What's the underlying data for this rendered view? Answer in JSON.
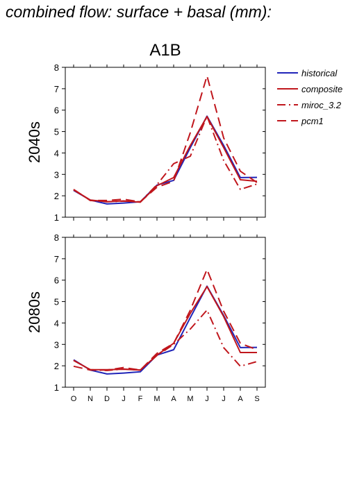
{
  "figure_title": "combined flow: surface + basal (mm):",
  "scenario_title": "A1B",
  "legend": [
    {
      "label": "historical",
      "color": "#1f24b8",
      "dash": "solid"
    },
    {
      "label": "composite",
      "color": "#c0161c",
      "dash": "solid"
    },
    {
      "label": "miroc_3.2",
      "color": "#c0161c",
      "dash": "dashdot"
    },
    {
      "label": "pcm1",
      "color": "#c0161c",
      "dash": "dashed"
    }
  ],
  "chart_data": [
    {
      "type": "line",
      "ylabel": "2040s",
      "categories": [
        "O",
        "N",
        "D",
        "J",
        "F",
        "M",
        "A",
        "M",
        "J",
        "J",
        "A",
        "S"
      ],
      "ylim": [
        1,
        8
      ],
      "yticks": [
        1,
        2,
        3,
        4,
        5,
        6,
        7,
        8
      ],
      "series": [
        {
          "name": "historical",
          "color": "#1f24b8",
          "dash": "solid",
          "values": [
            2.25,
            1.8,
            1.62,
            1.66,
            1.72,
            2.5,
            2.72,
            4.25,
            5.72,
            4.35,
            2.85,
            2.86
          ]
        },
        {
          "name": "composite",
          "color": "#c0161c",
          "dash": "solid",
          "values": [
            2.28,
            1.8,
            1.72,
            1.76,
            1.7,
            2.47,
            2.85,
            4.35,
            5.7,
            4.25,
            2.75,
            2.68
          ]
        },
        {
          "name": "miroc_3.2",
          "color": "#c0161c",
          "dash": "dashdot",
          "values": [
            2.28,
            1.78,
            1.72,
            1.75,
            1.72,
            2.52,
            3.5,
            3.85,
            5.72,
            3.65,
            2.3,
            2.55
          ]
        },
        {
          "name": "pcm1",
          "color": "#c0161c",
          "dash": "dashed",
          "values": [
            2.3,
            1.78,
            1.78,
            1.84,
            1.72,
            2.4,
            2.68,
            4.95,
            7.6,
            4.7,
            3.15,
            2.62
          ]
        }
      ]
    },
    {
      "type": "line",
      "ylabel": "2080s",
      "categories": [
        "O",
        "N",
        "D",
        "J",
        "F",
        "M",
        "A",
        "M",
        "J",
        "J",
        "A",
        "S"
      ],
      "ylim": [
        1,
        8
      ],
      "yticks": [
        1,
        2,
        3,
        4,
        5,
        6,
        7,
        8
      ],
      "series": [
        {
          "name": "historical",
          "color": "#1f24b8",
          "dash": "solid",
          "values": [
            2.28,
            1.8,
            1.62,
            1.66,
            1.72,
            2.5,
            2.75,
            4.25,
            5.72,
            4.35,
            2.85,
            2.86
          ]
        },
        {
          "name": "composite",
          "color": "#c0161c",
          "dash": "solid",
          "values": [
            2.25,
            1.82,
            1.82,
            1.84,
            1.8,
            2.5,
            3.05,
            4.45,
            5.7,
            4.3,
            2.62,
            2.62
          ]
        },
        {
          "name": "miroc_3.2",
          "color": "#c0161c",
          "dash": "dashdot",
          "values": [
            2.25,
            1.82,
            1.78,
            1.85,
            1.8,
            2.48,
            3.0,
            3.72,
            4.6,
            2.85,
            1.98,
            2.2
          ]
        },
        {
          "name": "pcm1",
          "color": "#c0161c",
          "dash": "dashed",
          "values": [
            1.98,
            1.8,
            1.8,
            1.92,
            1.8,
            2.58,
            3.05,
            4.6,
            6.5,
            4.55,
            3.05,
            2.75
          ]
        }
      ]
    }
  ]
}
